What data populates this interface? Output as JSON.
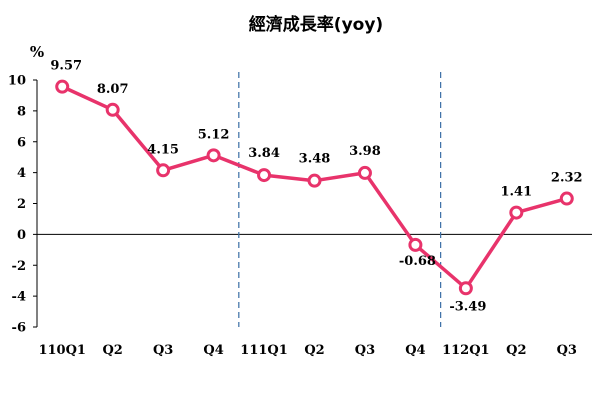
{
  "chart_data": {
    "type": "line",
    "title": "經濟成長率(yoy)",
    "ylabel": "%",
    "xlabel": "",
    "categories": [
      "110Q1",
      "Q2",
      "Q3",
      "Q4",
      "111Q1",
      "Q2",
      "Q3",
      "Q4",
      "112Q1",
      "Q2",
      "Q3"
    ],
    "series": [
      {
        "values": [
          9.57,
          8.07,
          4.15,
          5.12,
          3.84,
          3.48,
          3.98,
          -0.68,
          -3.49,
          1.41,
          2.32
        ]
      }
    ],
    "data_labels": [
      "9.57",
      "8.07",
      "4.15",
      "5.12",
      "3.84",
      "3.48",
      "3.98",
      "-0.68",
      "-3.49",
      "1.41",
      "2.32"
    ],
    "ylim": [
      -6,
      10
    ],
    "yticks": [
      10,
      8,
      6,
      4,
      2,
      0,
      -2,
      -4,
      -6
    ],
    "ytick_labels": [
      "10",
      "8",
      "6",
      "4",
      "2",
      "0",
      "-2",
      "-4",
      "-6"
    ],
    "year_dividers_after": [
      "Q4",
      "Q4"
    ],
    "grid": false,
    "legend": "none",
    "colors": {
      "line": "#e8336b",
      "marker_fill": "#ffffff",
      "divider": "#3a6ea5",
      "axis": "#000000"
    }
  }
}
